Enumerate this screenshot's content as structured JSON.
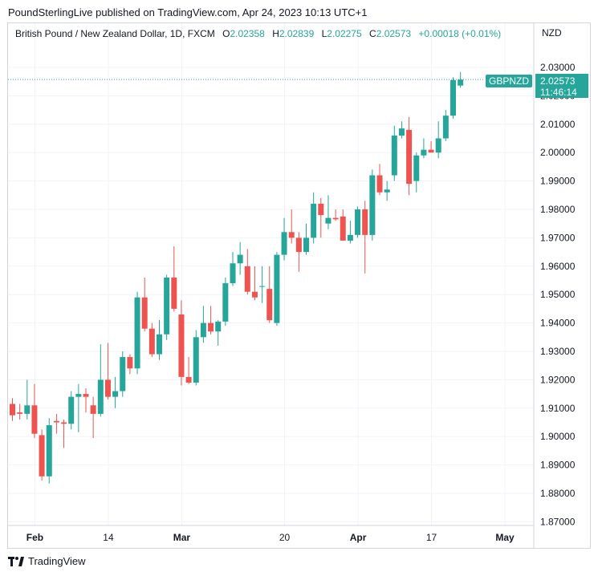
{
  "header": {
    "published_text": "PoundSterlingLive published on TradingView.com, Apr 24, 2023 10:13 UTC+1"
  },
  "legend": {
    "instrument": "British Pound / New Zealand Dollar, 1D, FXCM",
    "o_label": "O",
    "o_value": "2.02358",
    "h_label": "H",
    "h_value": "2.02839",
    "l_label": "L",
    "l_value": "2.02275",
    "c_label": "C",
    "c_value": "2.02573",
    "change": "+0.00018 (+0.01%)"
  },
  "axis": {
    "currency": "NZD"
  },
  "price_tag": {
    "symbol": "GBPNZD",
    "price": "2.02573",
    "countdown": "11:46:14"
  },
  "footer": {
    "brand": "TradingView"
  },
  "colors": {
    "up": "#26a69a",
    "down": "#ef5350",
    "grid": "#f0f3fa",
    "last_line": "#26a69a"
  },
  "chart_data": {
    "type": "candlestick",
    "title": "British Pound / New Zealand Dollar, 1D, FXCM",
    "ylabel": "NZD",
    "ylim": [
      1.867,
      2.038
    ],
    "y_ticks": [
      "2.03000",
      "2.02000",
      "2.01000",
      "2.00000",
      "1.99000",
      "1.98000",
      "1.97000",
      "1.96000",
      "1.95000",
      "1.94000",
      "1.93000",
      "1.92000",
      "1.91000",
      "1.90000",
      "1.89000",
      "1.88000",
      "1.87000"
    ],
    "x_ticks": [
      {
        "label": "Feb",
        "index": 3
      },
      {
        "label": "14",
        "index": 13
      },
      {
        "label": "Mar",
        "index": 23
      },
      {
        "label": "20",
        "index": 37
      },
      {
        "label": "Apr",
        "index": 47
      },
      {
        "label": "17",
        "index": 57
      },
      {
        "label": "May",
        "index": 67
      }
    ],
    "last_price": 2.02573,
    "candles": [
      {
        "o": 1.9115,
        "h": 1.9135,
        "l": 1.9055,
        "c": 1.9075
      },
      {
        "o": 1.9085,
        "h": 1.9115,
        "l": 1.906,
        "c": 1.908
      },
      {
        "o": 1.908,
        "h": 1.92,
        "l": 1.906,
        "c": 1.911
      },
      {
        "o": 1.911,
        "h": 1.9185,
        "l": 1.8995,
        "c": 1.901
      },
      {
        "o": 1.9005,
        "h": 1.9025,
        "l": 1.8845,
        "c": 1.886
      },
      {
        "o": 1.886,
        "h": 1.9065,
        "l": 1.8835,
        "c": 1.904
      },
      {
        "o": 1.9055,
        "h": 1.908,
        "l": 1.901,
        "c": 1.905
      },
      {
        "o": 1.905,
        "h": 1.906,
        "l": 1.896,
        "c": 1.9045
      },
      {
        "o": 1.9045,
        "h": 1.916,
        "l": 1.9025,
        "c": 1.914
      },
      {
        "o": 1.914,
        "h": 1.9185,
        "l": 1.9015,
        "c": 1.915
      },
      {
        "o": 1.915,
        "h": 1.917,
        "l": 1.9085,
        "c": 1.914
      },
      {
        "o": 1.911,
        "h": 1.914,
        "l": 1.8995,
        "c": 1.908
      },
      {
        "o": 1.908,
        "h": 1.9325,
        "l": 1.907,
        "c": 1.92
      },
      {
        "o": 1.92,
        "h": 1.933,
        "l": 1.913,
        "c": 1.914
      },
      {
        "o": 1.914,
        "h": 1.921,
        "l": 1.91,
        "c": 1.916
      },
      {
        "o": 1.916,
        "h": 1.93,
        "l": 1.914,
        "c": 1.928
      },
      {
        "o": 1.928,
        "h": 1.929,
        "l": 1.922,
        "c": 1.924
      },
      {
        "o": 1.924,
        "h": 1.951,
        "l": 1.922,
        "c": 1.949
      },
      {
        "o": 1.949,
        "h": 1.956,
        "l": 1.937,
        "c": 1.938
      },
      {
        "o": 1.938,
        "h": 1.94,
        "l": 1.928,
        "c": 1.929
      },
      {
        "o": 1.929,
        "h": 1.941,
        "l": 1.927,
        "c": 1.936
      },
      {
        "o": 1.936,
        "h": 1.957,
        "l": 1.934,
        "c": 1.956
      },
      {
        "o": 1.956,
        "h": 1.967,
        "l": 1.944,
        "c": 1.945
      },
      {
        "o": 1.943,
        "h": 1.948,
        "l": 1.918,
        "c": 1.921
      },
      {
        "o": 1.921,
        "h": 1.928,
        "l": 1.9185,
        "c": 1.919
      },
      {
        "o": 1.919,
        "h": 1.9375,
        "l": 1.918,
        "c": 1.935
      },
      {
        "o": 1.935,
        "h": 1.946,
        "l": 1.933,
        "c": 1.94
      },
      {
        "o": 1.94,
        "h": 1.946,
        "l": 1.936,
        "c": 1.937
      },
      {
        "o": 1.937,
        "h": 1.941,
        "l": 1.932,
        "c": 1.9405
      },
      {
        "o": 1.9405,
        "h": 1.956,
        "l": 1.939,
        "c": 1.954
      },
      {
        "o": 1.954,
        "h": 1.965,
        "l": 1.953,
        "c": 1.961
      },
      {
        "o": 1.961,
        "h": 1.9685,
        "l": 1.957,
        "c": 1.964
      },
      {
        "o": 1.96,
        "h": 1.966,
        "l": 1.95,
        "c": 1.951
      },
      {
        "o": 1.951,
        "h": 1.96,
        "l": 1.948,
        "c": 1.949
      },
      {
        "o": 1.953,
        "h": 1.96,
        "l": 1.947,
        "c": 1.953
      },
      {
        "o": 1.952,
        "h": 1.96,
        "l": 1.94,
        "c": 1.941
      },
      {
        "o": 1.94,
        "h": 1.965,
        "l": 1.939,
        "c": 1.964
      },
      {
        "o": 1.964,
        "h": 1.977,
        "l": 1.962,
        "c": 1.972
      },
      {
        "o": 1.972,
        "h": 1.98,
        "l": 1.968,
        "c": 1.97
      },
      {
        "o": 1.97,
        "h": 1.972,
        "l": 1.958,
        "c": 1.965
      },
      {
        "o": 1.965,
        "h": 1.975,
        "l": 1.964,
        "c": 1.97
      },
      {
        "o": 1.97,
        "h": 1.986,
        "l": 1.968,
        "c": 1.982
      },
      {
        "o": 1.982,
        "h": 1.984,
        "l": 1.97,
        "c": 1.978
      },
      {
        "o": 1.975,
        "h": 1.985,
        "l": 1.973,
        "c": 1.977
      },
      {
        "o": 1.977,
        "h": 1.98,
        "l": 1.976,
        "c": 1.9765
      },
      {
        "o": 1.9775,
        "h": 1.98,
        "l": 1.969,
        "c": 1.969
      },
      {
        "o": 1.969,
        "h": 1.976,
        "l": 1.968,
        "c": 1.971
      },
      {
        "o": 1.971,
        "h": 1.981,
        "l": 1.97,
        "c": 1.98
      },
      {
        "o": 1.98,
        "h": 1.983,
        "l": 1.9575,
        "c": 1.971
      },
      {
        "o": 1.971,
        "h": 1.994,
        "l": 1.969,
        "c": 1.992
      },
      {
        "o": 1.992,
        "h": 1.996,
        "l": 1.985,
        "c": 1.986
      },
      {
        "o": 1.986,
        "h": 1.99,
        "l": 1.983,
        "c": 1.987
      },
      {
        "o": 1.992,
        "h": 2.0095,
        "l": 1.99,
        "c": 2.006
      },
      {
        "o": 2.006,
        "h": 2.011,
        "l": 2.005,
        "c": 2.0085
      },
      {
        "o": 2.008,
        "h": 2.0125,
        "l": 1.985,
        "c": 1.989
      },
      {
        "o": 1.99,
        "h": 2.0,
        "l": 1.986,
        "c": 1.999
      },
      {
        "o": 1.999,
        "h": 2.005,
        "l": 1.998,
        "c": 2.001
      },
      {
        "o": 2.001,
        "h": 2.004,
        "l": 2.0,
        "c": 2.0
      },
      {
        "o": 2.0,
        "h": 2.011,
        "l": 1.998,
        "c": 2.005
      },
      {
        "o": 2.005,
        "h": 2.015,
        "l": 2.004,
        "c": 2.013
      },
      {
        "o": 2.013,
        "h": 2.0265,
        "l": 2.012,
        "c": 2.0255
      },
      {
        "o": 2.0236,
        "h": 2.0284,
        "l": 2.0228,
        "c": 2.0257
      }
    ]
  }
}
